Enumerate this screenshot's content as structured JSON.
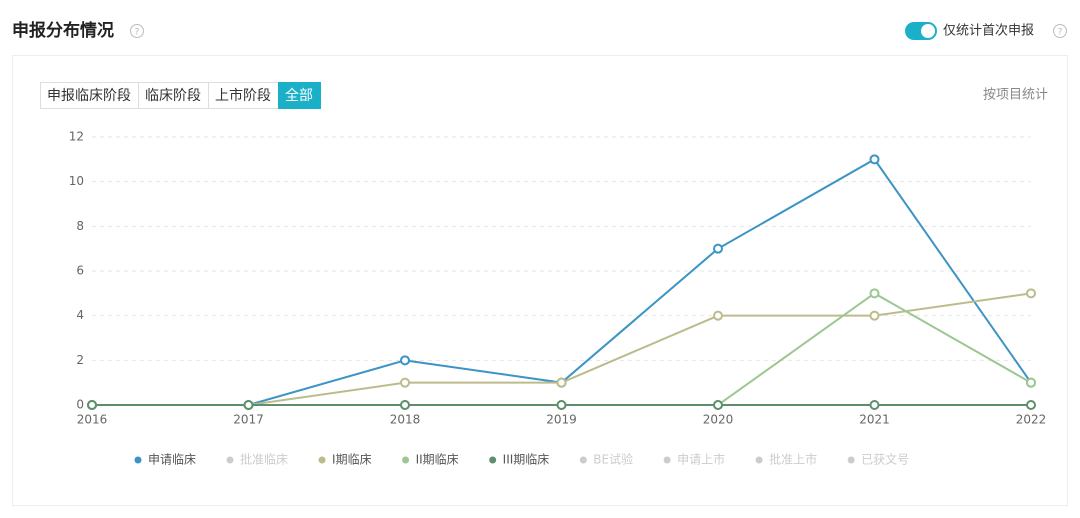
{
  "header": {
    "title": "申报分布情况",
    "toggle_label": "仅统计首次申报",
    "toggle_on": true
  },
  "tabs": {
    "items": [
      "申报临床阶段",
      "临床阶段",
      "上市阶段",
      "全部"
    ],
    "active": 3
  },
  "mode_label": "按项目统计",
  "chart_data": {
    "type": "line",
    "categories": [
      "2016",
      "2017",
      "2018",
      "2019",
      "2020",
      "2021",
      "2022"
    ],
    "ylim": [
      0,
      12
    ],
    "yticks": [
      0,
      2,
      4,
      6,
      8,
      10,
      12
    ],
    "grid": true,
    "series": [
      {
        "name": "申请临床",
        "color": "#3b93c6",
        "values": [
          0,
          0,
          2,
          1,
          7,
          11,
          1
        ]
      },
      {
        "name": "批准临床",
        "color": "#cccccc",
        "hidden": true
      },
      {
        "name": "I期临床",
        "color": "#bcbb8c",
        "values": [
          0,
          0,
          1,
          1,
          4,
          4,
          5
        ]
      },
      {
        "name": "II期临床",
        "color": "#9dc792",
        "values": [
          0,
          0,
          0,
          0,
          0,
          5,
          1
        ]
      },
      {
        "name": "III期临床",
        "color": "#5e8e6c",
        "values": [
          0,
          0,
          0,
          0,
          0,
          0,
          0
        ]
      },
      {
        "name": "BE试验",
        "color": "#cccccc",
        "hidden": true
      },
      {
        "name": "申请上市",
        "color": "#cccccc",
        "hidden": true
      },
      {
        "name": "批准上市",
        "color": "#cccccc",
        "hidden": true
      },
      {
        "name": "已获文号",
        "color": "#cccccc",
        "hidden": true
      }
    ]
  }
}
